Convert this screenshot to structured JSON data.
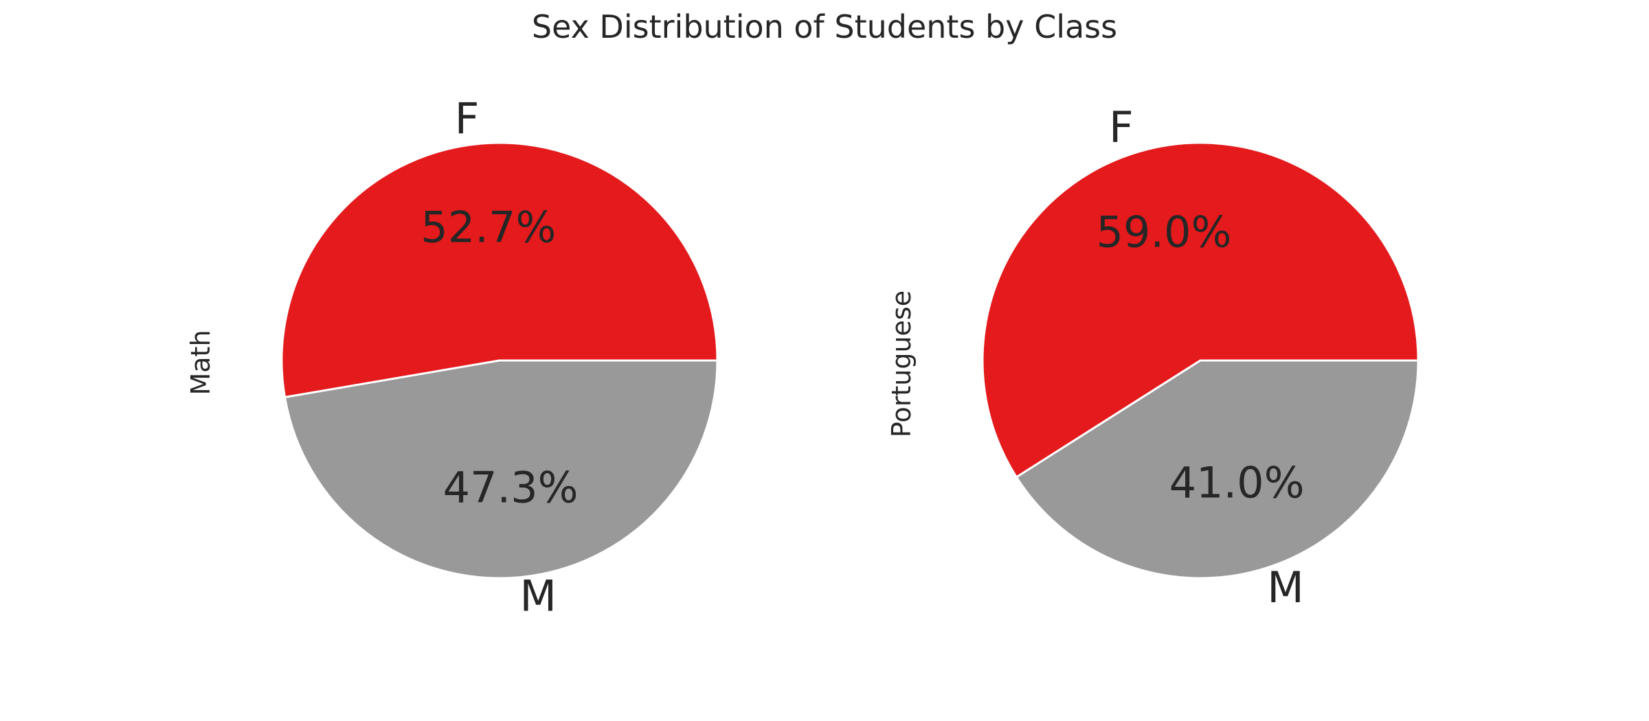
{
  "figure": {
    "title": "Sex Distribution of Students by Class"
  },
  "chart_data": [
    {
      "type": "pie",
      "ylabel": "Math",
      "categories": [
        "F",
        "M"
      ],
      "values": [
        52.7,
        47.3
      ],
      "percent_labels": [
        "52.7%",
        "47.3%"
      ],
      "colors": [
        "#e41a1c",
        "#999999"
      ],
      "start_angle": "0 degrees (3 o'clock), counter-clockwise"
    },
    {
      "type": "pie",
      "ylabel": "Portuguese",
      "categories": [
        "F",
        "M"
      ],
      "values": [
        59.0,
        41.0
      ],
      "percent_labels": [
        "59.0%",
        "41.0%"
      ],
      "colors": [
        "#e41a1c",
        "#999999"
      ],
      "start_angle": "0 degrees (3 o'clock), counter-clockwise"
    }
  ]
}
